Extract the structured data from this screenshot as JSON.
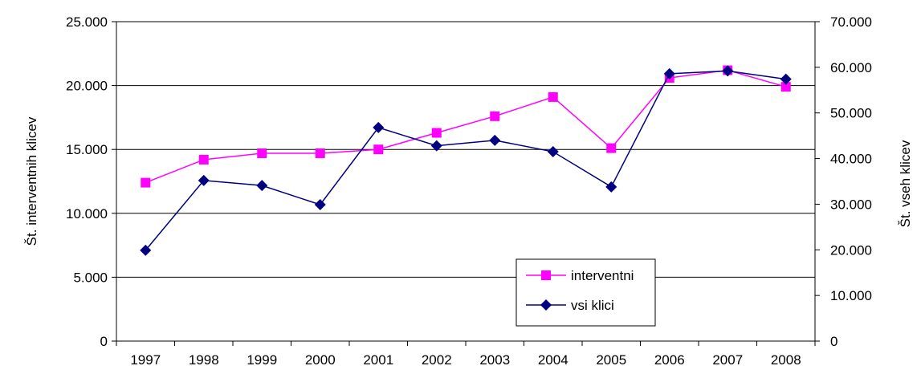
{
  "chart_data": {
    "type": "line",
    "categories": [
      "1997",
      "1998",
      "1999",
      "2000",
      "2001",
      "2002",
      "2003",
      "2004",
      "2005",
      "2006",
      "2007",
      "2008"
    ],
    "y_left": {
      "label": "Št. interventnih klicev",
      "range": [
        0,
        25000
      ],
      "ticks": [
        0,
        5000,
        10000,
        15000,
        20000,
        25000
      ],
      "tick_labels": [
        "0",
        "5.000",
        "10.000",
        "15.000",
        "20.000",
        "25.000"
      ]
    },
    "y_right": {
      "label": "Št. vseh klicev",
      "range": [
        0,
        70000
      ],
      "ticks": [
        0,
        10000,
        20000,
        30000,
        40000,
        50000,
        60000,
        70000
      ],
      "tick_labels": [
        "0",
        "10.000",
        "20.000",
        "30.000",
        "40.000",
        "50.000",
        "60.000",
        "70.000"
      ]
    },
    "series": [
      {
        "name": "interventni",
        "axis": "left",
        "color": "#ff00ff",
        "marker": "square",
        "values": [
          12400,
          14200,
          14700,
          14700,
          15000,
          16300,
          17600,
          19100,
          15100,
          20600,
          21200,
          19900
        ]
      },
      {
        "name": "vsi klici",
        "axis": "right",
        "color": "#000080",
        "marker": "diamond",
        "values": [
          19900,
          35200,
          34100,
          29900,
          46800,
          42800,
          44000,
          41500,
          33800,
          58600,
          59200,
          57400
        ]
      }
    ],
    "grid": true,
    "legend_position": "bottom-right-inside"
  }
}
